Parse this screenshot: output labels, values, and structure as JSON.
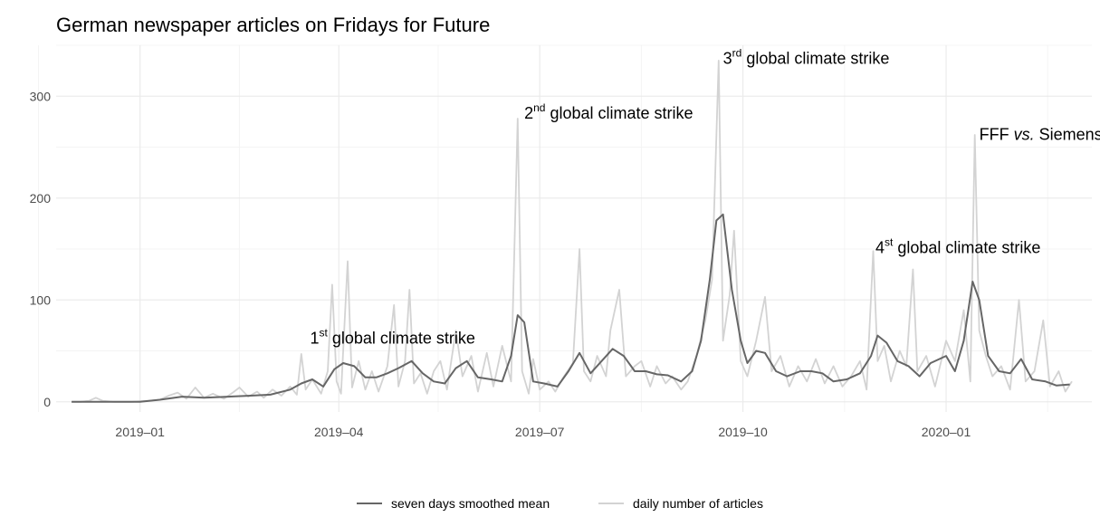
{
  "chart_data": {
    "type": "line",
    "title": "German newspaper articles on Fridays for Future",
    "xlabel": "",
    "ylabel": "",
    "xlim": [
      "2018-11-24",
      "2020-03-07"
    ],
    "ylim": [
      -10,
      350
    ],
    "grid": true,
    "legend_position": "bottom",
    "x_ticks": [
      "2019-01",
      "2019-04",
      "2019-07",
      "2019-10",
      "2020-01"
    ],
    "y_ticks": [
      0,
      100,
      200,
      300
    ],
    "colors": {
      "smoothed": "#666666",
      "daily": "#d3d3d3",
      "grid_major": "#ebebeb",
      "grid_minor": "#f4f4f4"
    },
    "series": [
      {
        "name": "daily number of articles",
        "points": [
          [
            "2018-12-01",
            0
          ],
          [
            "2018-12-05",
            0
          ],
          [
            "2018-12-09",
            1
          ],
          [
            "2018-12-12",
            4
          ],
          [
            "2018-12-15",
            1
          ],
          [
            "2018-12-20",
            0
          ],
          [
            "2018-12-28",
            0
          ],
          [
            "2019-01-05",
            1
          ],
          [
            "2019-01-10",
            2
          ],
          [
            "2019-01-14",
            6
          ],
          [
            "2019-01-18",
            9
          ],
          [
            "2019-01-22",
            3
          ],
          [
            "2019-01-26",
            14
          ],
          [
            "2019-01-30",
            4
          ],
          [
            "2019-02-03",
            8
          ],
          [
            "2019-02-08",
            3
          ],
          [
            "2019-02-12",
            9
          ],
          [
            "2019-02-15",
            14
          ],
          [
            "2019-02-19",
            5
          ],
          [
            "2019-02-23",
            10
          ],
          [
            "2019-02-26",
            4
          ],
          [
            "2019-03-02",
            12
          ],
          [
            "2019-03-06",
            6
          ],
          [
            "2019-03-10",
            15
          ],
          [
            "2019-03-13",
            7
          ],
          [
            "2019-03-15",
            47
          ],
          [
            "2019-03-17",
            12
          ],
          [
            "2019-03-20",
            22
          ],
          [
            "2019-03-24",
            8
          ],
          [
            "2019-03-27",
            30
          ],
          [
            "2019-03-29",
            115
          ],
          [
            "2019-03-31",
            20
          ],
          [
            "2019-04-02",
            8
          ],
          [
            "2019-04-05",
            138
          ],
          [
            "2019-04-07",
            14
          ],
          [
            "2019-04-10",
            40
          ],
          [
            "2019-04-13",
            12
          ],
          [
            "2019-04-16",
            30
          ],
          [
            "2019-04-19",
            10
          ],
          [
            "2019-04-23",
            35
          ],
          [
            "2019-04-26",
            95
          ],
          [
            "2019-04-28",
            15
          ],
          [
            "2019-05-01",
            40
          ],
          [
            "2019-05-03",
            110
          ],
          [
            "2019-05-05",
            18
          ],
          [
            "2019-05-08",
            28
          ],
          [
            "2019-05-11",
            8
          ],
          [
            "2019-05-14",
            30
          ],
          [
            "2019-05-17",
            40
          ],
          [
            "2019-05-20",
            12
          ],
          [
            "2019-05-24",
            70
          ],
          [
            "2019-05-27",
            25
          ],
          [
            "2019-05-31",
            45
          ],
          [
            "2019-06-03",
            10
          ],
          [
            "2019-06-07",
            48
          ],
          [
            "2019-06-10",
            15
          ],
          [
            "2019-06-14",
            55
          ],
          [
            "2019-06-18",
            20
          ],
          [
            "2019-06-21",
            278
          ],
          [
            "2019-06-23",
            30
          ],
          [
            "2019-06-26",
            8
          ],
          [
            "2019-06-28",
            42
          ],
          [
            "2019-07-01",
            12
          ],
          [
            "2019-07-05",
            20
          ],
          [
            "2019-07-08",
            10
          ],
          [
            "2019-07-12",
            25
          ],
          [
            "2019-07-16",
            38
          ],
          [
            "2019-07-19",
            150
          ],
          [
            "2019-07-21",
            30
          ],
          [
            "2019-07-24",
            20
          ],
          [
            "2019-07-27",
            45
          ],
          [
            "2019-07-31",
            25
          ],
          [
            "2019-08-02",
            70
          ],
          [
            "2019-08-06",
            110
          ],
          [
            "2019-08-09",
            25
          ],
          [
            "2019-08-13",
            35
          ],
          [
            "2019-08-16",
            40
          ],
          [
            "2019-08-20",
            15
          ],
          [
            "2019-08-23",
            35
          ],
          [
            "2019-08-27",
            18
          ],
          [
            "2019-08-30",
            25
          ],
          [
            "2019-09-03",
            12
          ],
          [
            "2019-09-06",
            20
          ],
          [
            "2019-09-10",
            45
          ],
          [
            "2019-09-14",
            80
          ],
          [
            "2019-09-17",
            120
          ],
          [
            "2019-09-20",
            335
          ],
          [
            "2019-09-22",
            60
          ],
          [
            "2019-09-25",
            105
          ],
          [
            "2019-09-27",
            168
          ],
          [
            "2019-09-30",
            40
          ],
          [
            "2019-10-03",
            25
          ],
          [
            "2019-10-07",
            60
          ],
          [
            "2019-10-11",
            103
          ],
          [
            "2019-10-14",
            30
          ],
          [
            "2019-10-18",
            45
          ],
          [
            "2019-10-22",
            15
          ],
          [
            "2019-10-26",
            35
          ],
          [
            "2019-10-30",
            20
          ],
          [
            "2019-11-03",
            42
          ],
          [
            "2019-11-07",
            18
          ],
          [
            "2019-11-11",
            35
          ],
          [
            "2019-11-15",
            15
          ],
          [
            "2019-11-19",
            25
          ],
          [
            "2019-11-23",
            40
          ],
          [
            "2019-11-26",
            12
          ],
          [
            "2019-11-29",
            148
          ],
          [
            "2019-12-01",
            40
          ],
          [
            "2019-12-04",
            55
          ],
          [
            "2019-12-07",
            20
          ],
          [
            "2019-12-11",
            50
          ],
          [
            "2019-12-14",
            35
          ],
          [
            "2019-12-17",
            130
          ],
          [
            "2019-12-19",
            30
          ],
          [
            "2019-12-23",
            45
          ],
          [
            "2019-12-27",
            15
          ],
          [
            "2020-01-01",
            60
          ],
          [
            "2020-01-05",
            40
          ],
          [
            "2020-01-09",
            90
          ],
          [
            "2020-01-12",
            20
          ],
          [
            "2020-01-14",
            262
          ],
          [
            "2020-01-16",
            70
          ],
          [
            "2020-01-19",
            45
          ],
          [
            "2020-01-22",
            25
          ],
          [
            "2020-01-26",
            35
          ],
          [
            "2020-01-30",
            12
          ],
          [
            "2020-02-03",
            100
          ],
          [
            "2020-02-06",
            20
          ],
          [
            "2020-02-10",
            30
          ],
          [
            "2020-02-14",
            80
          ],
          [
            "2020-02-17",
            15
          ],
          [
            "2020-02-21",
            30
          ],
          [
            "2020-02-24",
            10
          ],
          [
            "2020-02-27",
            20
          ]
        ]
      },
      {
        "name": "seven days smoothed mean",
        "points": [
          [
            "2018-12-01",
            0
          ],
          [
            "2018-12-10",
            0
          ],
          [
            "2018-12-20",
            0
          ],
          [
            "2019-01-01",
            0
          ],
          [
            "2019-01-10",
            2
          ],
          [
            "2019-01-20",
            5
          ],
          [
            "2019-01-30",
            4
          ],
          [
            "2019-02-10",
            5
          ],
          [
            "2019-02-20",
            6
          ],
          [
            "2019-03-01",
            7
          ],
          [
            "2019-03-10",
            12
          ],
          [
            "2019-03-15",
            18
          ],
          [
            "2019-03-20",
            22
          ],
          [
            "2019-03-25",
            15
          ],
          [
            "2019-03-30",
            32
          ],
          [
            "2019-04-03",
            38
          ],
          [
            "2019-04-08",
            35
          ],
          [
            "2019-04-13",
            24
          ],
          [
            "2019-04-18",
            24
          ],
          [
            "2019-04-23",
            28
          ],
          [
            "2019-04-28",
            33
          ],
          [
            "2019-05-04",
            40
          ],
          [
            "2019-05-09",
            28
          ],
          [
            "2019-05-14",
            20
          ],
          [
            "2019-05-19",
            18
          ],
          [
            "2019-05-24",
            33
          ],
          [
            "2019-05-29",
            40
          ],
          [
            "2019-06-03",
            24
          ],
          [
            "2019-06-09",
            22
          ],
          [
            "2019-06-14",
            20
          ],
          [
            "2019-06-18",
            45
          ],
          [
            "2019-06-21",
            85
          ],
          [
            "2019-06-24",
            78
          ],
          [
            "2019-06-28",
            20
          ],
          [
            "2019-07-03",
            18
          ],
          [
            "2019-07-09",
            15
          ],
          [
            "2019-07-14",
            30
          ],
          [
            "2019-07-19",
            48
          ],
          [
            "2019-07-24",
            28
          ],
          [
            "2019-07-29",
            40
          ],
          [
            "2019-08-03",
            52
          ],
          [
            "2019-08-08",
            45
          ],
          [
            "2019-08-13",
            30
          ],
          [
            "2019-08-18",
            30
          ],
          [
            "2019-08-23",
            27
          ],
          [
            "2019-08-28",
            26
          ],
          [
            "2019-09-03",
            20
          ],
          [
            "2019-09-08",
            30
          ],
          [
            "2019-09-12",
            60
          ],
          [
            "2019-09-16",
            120
          ],
          [
            "2019-09-19",
            178
          ],
          [
            "2019-09-22",
            184
          ],
          [
            "2019-09-26",
            110
          ],
          [
            "2019-09-30",
            60
          ],
          [
            "2019-10-03",
            38
          ],
          [
            "2019-10-07",
            50
          ],
          [
            "2019-10-11",
            48
          ],
          [
            "2019-10-16",
            30
          ],
          [
            "2019-10-21",
            25
          ],
          [
            "2019-10-27",
            30
          ],
          [
            "2019-11-01",
            30
          ],
          [
            "2019-11-06",
            28
          ],
          [
            "2019-11-11",
            20
          ],
          [
            "2019-11-17",
            22
          ],
          [
            "2019-11-23",
            28
          ],
          [
            "2019-11-28",
            45
          ],
          [
            "2019-12-01",
            65
          ],
          [
            "2019-12-05",
            58
          ],
          [
            "2019-12-10",
            40
          ],
          [
            "2019-12-15",
            35
          ],
          [
            "2019-12-20",
            25
          ],
          [
            "2019-12-25",
            38
          ],
          [
            "2020-01-01",
            45
          ],
          [
            "2020-01-05",
            30
          ],
          [
            "2020-01-09",
            60
          ],
          [
            "2020-01-13",
            118
          ],
          [
            "2020-01-16",
            100
          ],
          [
            "2020-01-20",
            45
          ],
          [
            "2020-01-25",
            30
          ],
          [
            "2020-01-30",
            28
          ],
          [
            "2020-02-04",
            42
          ],
          [
            "2020-02-09",
            22
          ],
          [
            "2020-02-15",
            20
          ],
          [
            "2020-02-20",
            16
          ],
          [
            "2020-02-26",
            17
          ]
        ]
      }
    ],
    "annotations": [
      {
        "pre": "1",
        "sup": "st",
        "post": " global climate strike",
        "x": "2019-03-19",
        "y": 57
      },
      {
        "pre": "2",
        "sup": "nd",
        "post": " global climate strike",
        "x": "2019-06-24",
        "y": 278
      },
      {
        "pre": "3",
        "sup": "rd",
        "post": " global climate strike",
        "x": "2019-09-22",
        "y": 332
      },
      {
        "pre": "4",
        "sup": "st",
        "post": " global climate strike",
        "x": "2019-11-30",
        "y": 146
      },
      {
        "pre": "FFF ",
        "em": "vs.",
        "post": " Siemens",
        "x": "2020-01-16",
        "y": 257
      }
    ]
  }
}
